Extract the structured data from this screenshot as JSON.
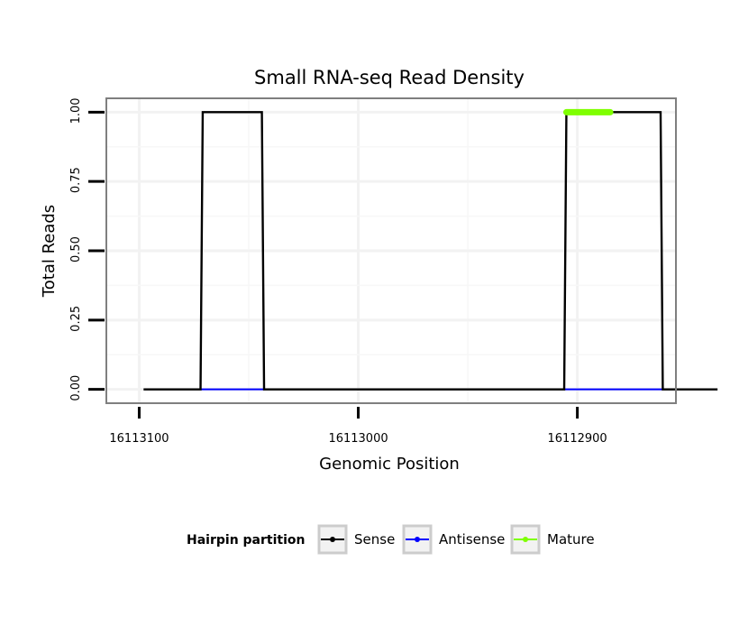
{
  "chart_data": {
    "type": "line",
    "title": "Small RNA-seq Read Density",
    "xlabel": "Genomic Position",
    "ylabel": "Total Reads",
    "xlim": [
      16113115,
      16112855
    ],
    "x_reversed": true,
    "ylim": [
      -0.05,
      1.05
    ],
    "xticks": [
      16113100,
      16113000,
      16112900
    ],
    "xtick_labels": [
      "16113100",
      "16113000",
      "16112900"
    ],
    "yticks": [
      0,
      0.25,
      0.5,
      0.75,
      1.0
    ],
    "ytick_labels": [
      "0.00",
      "0.25",
      "0.50",
      "0.75",
      "1.00"
    ],
    "grid": true,
    "legend": {
      "title": "Hairpin partition",
      "position": "bottom",
      "entries": [
        "Sense",
        "Antisense",
        "Mature"
      ]
    },
    "series": [
      {
        "name": "Sense",
        "color": "#000000",
        "points": [
          [
            16113098,
            0
          ],
          [
            16113072,
            0
          ],
          [
            16113071,
            1
          ],
          [
            16113044,
            1
          ],
          [
            16113043,
            0
          ],
          [
            16112906,
            0
          ],
          [
            16112905,
            1
          ],
          [
            16112862,
            1
          ],
          [
            16112861,
            0
          ],
          [
            16112836,
            0
          ]
        ]
      },
      {
        "name": "Antisense",
        "color": "#0000ff",
        "points": [
          [
            16113072,
            0
          ],
          [
            16113043,
            0
          ],
          [
            16112906,
            0
          ],
          [
            16112861,
            0
          ]
        ]
      },
      {
        "name": "Mature",
        "color": "#7fff00",
        "points": [
          [
            16112905,
            1
          ],
          [
            16112885,
            1
          ]
        ]
      }
    ]
  }
}
